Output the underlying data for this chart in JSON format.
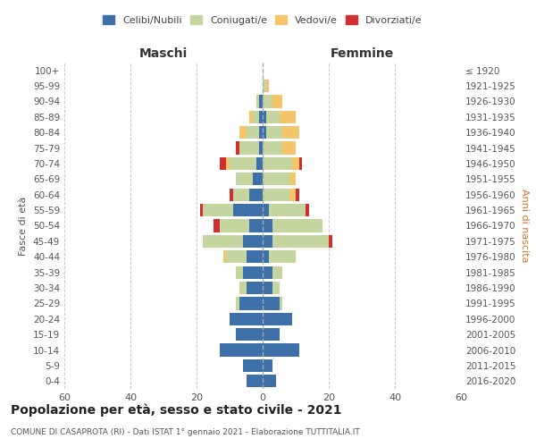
{
  "age_groups": [
    "0-4",
    "5-9",
    "10-14",
    "15-19",
    "20-24",
    "25-29",
    "30-34",
    "35-39",
    "40-44",
    "45-49",
    "50-54",
    "55-59",
    "60-64",
    "65-69",
    "70-74",
    "75-79",
    "80-84",
    "85-89",
    "90-94",
    "95-99",
    "100+"
  ],
  "birth_years": [
    "2016-2020",
    "2011-2015",
    "2006-2010",
    "2001-2005",
    "1996-2000",
    "1991-1995",
    "1986-1990",
    "1981-1985",
    "1976-1980",
    "1971-1975",
    "1966-1970",
    "1961-1965",
    "1956-1960",
    "1951-1955",
    "1946-1950",
    "1941-1945",
    "1936-1940",
    "1931-1935",
    "1926-1930",
    "1921-1925",
    "≤ 1920"
  ],
  "colors": {
    "celibi": "#3d6fa8",
    "coniugati": "#c5d5a0",
    "vedovi": "#f5c56a",
    "divorziati": "#d03030"
  },
  "males": {
    "celibi": [
      5,
      6,
      13,
      8,
      10,
      7,
      5,
      6,
      5,
      6,
      4,
      9,
      4,
      3,
      2,
      1,
      1,
      1,
      1,
      0,
      0
    ],
    "coniugati": [
      0,
      0,
      0,
      0,
      0,
      1,
      2,
      2,
      6,
      12,
      9,
      9,
      5,
      5,
      8,
      6,
      4,
      2,
      1,
      0,
      0
    ],
    "vedovi": [
      0,
      0,
      0,
      0,
      0,
      0,
      0,
      0,
      1,
      0,
      0,
      0,
      0,
      0,
      1,
      0,
      2,
      1,
      0,
      0,
      0
    ],
    "divorziati": [
      0,
      0,
      0,
      0,
      0,
      0,
      0,
      0,
      0,
      0,
      2,
      1,
      1,
      0,
      2,
      1,
      0,
      0,
      0,
      0,
      0
    ]
  },
  "females": {
    "celibi": [
      4,
      3,
      11,
      5,
      9,
      5,
      3,
      3,
      2,
      3,
      3,
      2,
      0,
      0,
      0,
      0,
      1,
      1,
      0,
      0,
      0
    ],
    "coniugati": [
      0,
      0,
      0,
      0,
      0,
      1,
      2,
      3,
      8,
      17,
      15,
      11,
      8,
      8,
      9,
      6,
      5,
      4,
      3,
      1,
      0
    ],
    "vedovi": [
      0,
      0,
      0,
      0,
      0,
      0,
      0,
      0,
      0,
      0,
      0,
      0,
      2,
      2,
      2,
      4,
      5,
      5,
      3,
      1,
      0
    ],
    "divorziati": [
      0,
      0,
      0,
      0,
      0,
      0,
      0,
      0,
      0,
      1,
      0,
      1,
      1,
      0,
      1,
      0,
      0,
      0,
      0,
      0,
      0
    ]
  },
  "xlim": 60,
  "title": "Popolazione per età, sesso e stato civile - 2021",
  "subtitle": "COMUNE DI CASAPROTA (RI) - Dati ISTAT 1° gennaio 2021 - Elaborazione TUTTITALIA.IT",
  "ylabel_left": "Fasce di età",
  "xlabel_left": "Maschi",
  "xlabel_right": "Femmine",
  "ylabel_right": "Anni di nascita",
  "legend_labels": [
    "Celibi/Nubili",
    "Coniugati/e",
    "Vedovi/e",
    "Divorziati/e"
  ]
}
